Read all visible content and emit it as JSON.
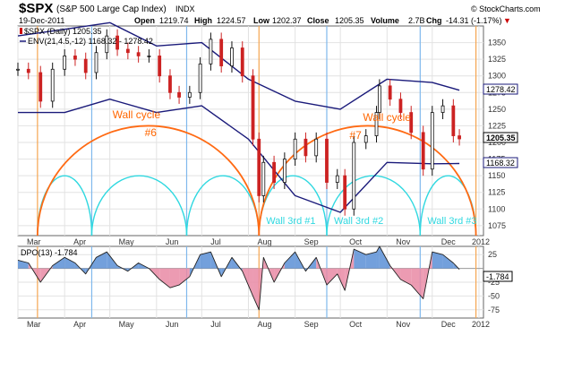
{
  "header": {
    "symbol": "$SPX",
    "name": "(S&P 500 Large Cap Index)",
    "exchange": "INDX",
    "brand": "© StockCharts.com",
    "date": "19-Dec-2011",
    "open_label": "Open",
    "open": "1219.74",
    "high_label": "High",
    "high": "1224.57",
    "low_label": "Low",
    "low": "1202.37",
    "close_label": "Close",
    "close": "1205.35",
    "volume_label": "Volume",
    "volume": "2.7B",
    "chg_label": "Chg",
    "chg": "-14.31 (-1.17%)",
    "chg_arrow": "▼"
  },
  "price_legend": {
    "series": "$SPX (Daily) 1205.35",
    "envelope": "ENV(21,4.5,-12) 1168.32 - 1278.42"
  },
  "price_tags": {
    "upper": "1278.42",
    "close": "1205.35",
    "lower": "1168.32"
  },
  "dpo_legend": "DPO(13) -1.784",
  "dpo_tag": "-1.784",
  "chart_data": [
    {
      "type": "candlestick",
      "title": "$SPX (S&P 500 Large Cap Index)",
      "x": [
        "2011-03-01",
        "2011-03-08",
        "2011-03-16",
        "2011-03-24",
        "2011-04-01",
        "2011-04-08",
        "2011-04-15",
        "2011-04-22",
        "2011-04-29",
        "2011-05-06",
        "2011-05-13",
        "2011-05-20",
        "2011-05-27",
        "2011-06-03",
        "2011-06-10",
        "2011-06-16",
        "2011-06-23",
        "2011-06-30",
        "2011-07-07",
        "2011-07-14",
        "2011-07-21",
        "2011-07-28",
        "2011-08-04",
        "2011-08-08",
        "2011-08-11",
        "2011-08-18",
        "2011-08-25",
        "2011-09-01",
        "2011-09-08",
        "2011-09-15",
        "2011-09-22",
        "2011-09-29",
        "2011-10-04",
        "2011-10-10",
        "2011-10-18",
        "2011-10-25",
        "2011-10-27",
        "2011-11-03",
        "2011-11-10",
        "2011-11-17",
        "2011-11-25",
        "2011-12-01",
        "2011-12-08",
        "2011-12-15",
        "2011-12-19"
      ],
      "close": [
        1310,
        1305,
        1262,
        1310,
        1330,
        1325,
        1305,
        1335,
        1360,
        1340,
        1335,
        1330,
        1330,
        1300,
        1275,
        1268,
        1275,
        1318,
        1355,
        1315,
        1342,
        1300,
        1205,
        1120,
        1170,
        1140,
        1175,
        1205,
        1180,
        1205,
        1140,
        1150,
        1100,
        1200,
        1210,
        1245,
        1285,
        1265,
        1245,
        1215,
        1160,
        1245,
        1255,
        1210,
        1205.35
      ],
      "envelope": {
        "x": [
          "2011-03-01",
          "2011-04-01",
          "2011-05-01",
          "2011-06-01",
          "2011-07-01",
          "2011-08-01",
          "2011-09-01",
          "2011-10-01",
          "2011-11-01",
          "2011-12-01",
          "2011-12-19"
        ],
        "upper": [
          1360,
          1370,
          1380,
          1345,
          1350,
          1295,
          1262,
          1250,
          1295,
          1290,
          1278.42
        ],
        "lower": [
          1245,
          1245,
          1265,
          1245,
          1255,
          1205,
          1120,
          1095,
          1170,
          1168,
          1168.32
        ]
      },
      "yticks": [
        1075,
        1100,
        1125,
        1150,
        1175,
        1200,
        1225,
        1250,
        1275,
        1300,
        1325,
        1350
      ],
      "ylim": [
        1060,
        1375
      ],
      "months": [
        "Mar",
        "Apr",
        "May",
        "Jun",
        "Jul",
        "Aug",
        "Sep",
        "Oct",
        "Nov",
        "Dec",
        "2012"
      ],
      "cycles": {
        "wall": [
          {
            "label": "Wall cycle",
            "number": "#6",
            "start": "2011-03-14",
            "end": "2011-08-08",
            "peak": 1225
          },
          {
            "label": "Wall cycle",
            "number": "#7",
            "start": "2011-08-08",
            "end": "2011-12-30",
            "peak": 1225
          }
        ],
        "third": [
          {
            "start": "2011-03-14",
            "end": "2011-04-19",
            "label": ""
          },
          {
            "start": "2011-04-19",
            "end": "2011-06-21",
            "label": ""
          },
          {
            "start": "2011-06-21",
            "end": "2011-08-08",
            "label": ""
          },
          {
            "start": "2011-08-08",
            "end": "2011-09-22",
            "label": "Wall 3rd #1"
          },
          {
            "start": "2011-09-22",
            "end": "2011-11-23",
            "label": "Wall 3rd #2"
          },
          {
            "start": "2011-11-23",
            "end": "2011-12-30",
            "label": "Wall 3rd #3"
          }
        ],
        "third_peak": 1150
      },
      "vlines_orange": [
        "2011-03-14",
        "2011-08-08",
        "2011-12-30"
      ],
      "vlines_blue": [
        "2011-04-19",
        "2011-06-21",
        "2011-09-22",
        "2011-11-23"
      ]
    },
    {
      "type": "area",
      "title": "DPO(13) -1.784",
      "x": [
        "2011-03-01",
        "2011-03-08",
        "2011-03-16",
        "2011-03-24",
        "2011-04-01",
        "2011-04-08",
        "2011-04-15",
        "2011-04-22",
        "2011-04-29",
        "2011-05-06",
        "2011-05-13",
        "2011-05-20",
        "2011-05-27",
        "2011-06-03",
        "2011-06-10",
        "2011-06-16",
        "2011-06-23",
        "2011-06-30",
        "2011-07-07",
        "2011-07-14",
        "2011-07-21",
        "2011-07-28",
        "2011-08-04",
        "2011-08-08",
        "2011-08-11",
        "2011-08-18",
        "2011-08-25",
        "2011-09-01",
        "2011-09-08",
        "2011-09-15",
        "2011-09-22",
        "2011-09-29",
        "2011-10-04",
        "2011-10-10",
        "2011-10-18",
        "2011-10-25",
        "2011-10-27",
        "2011-11-03",
        "2011-11-10",
        "2011-11-17",
        "2011-11-25",
        "2011-12-01",
        "2011-12-08",
        "2011-12-15",
        "2011-12-19"
      ],
      "values": [
        15,
        10,
        -25,
        5,
        20,
        10,
        -10,
        20,
        30,
        5,
        -5,
        10,
        0,
        -20,
        -35,
        -30,
        -15,
        25,
        30,
        -15,
        20,
        -5,
        -50,
        -75,
        20,
        -25,
        10,
        30,
        -5,
        20,
        -30,
        -10,
        -40,
        35,
        25,
        30,
        40,
        5,
        -20,
        -30,
        -55,
        30,
        25,
        10,
        -1.784
      ],
      "yticks": [
        -75,
        -50,
        -25,
        0,
        25
      ],
      "ylim": [
        -90,
        40
      ],
      "months": [
        "Mar",
        "Apr",
        "May",
        "Jun",
        "Jul",
        "Aug",
        "Sep",
        "Oct",
        "Nov",
        "Dec",
        "2012"
      ]
    }
  ]
}
